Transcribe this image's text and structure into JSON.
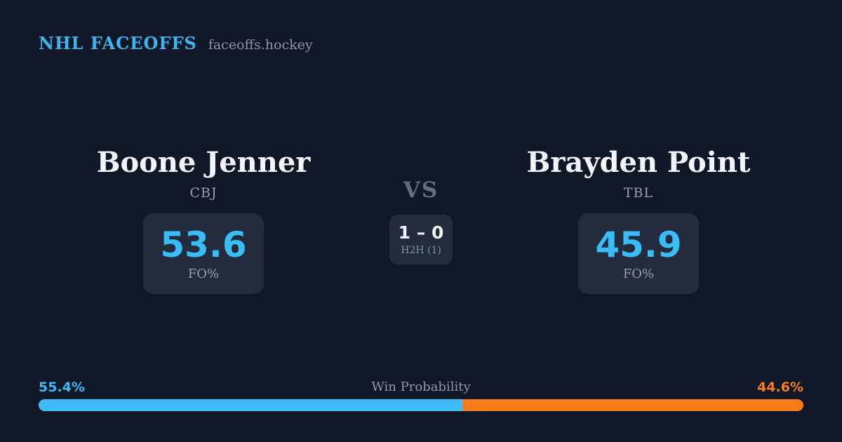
{
  "header": {
    "brand": "NHL FACEOFFS",
    "site": "faceoffs.hockey"
  },
  "players": {
    "left": {
      "name": "Boone Jenner",
      "team": "CBJ",
      "stat_value": "53.6",
      "stat_label": "FO%",
      "win_prob_label": "55.4%"
    },
    "right": {
      "name": "Brayden Point",
      "team": "TBL",
      "stat_value": "45.9",
      "stat_label": "FO%",
      "win_prob_label": "44.6%"
    }
  },
  "center": {
    "vs": "VS",
    "score": "1 – 0",
    "h2h": "H2H (1)"
  },
  "win_probability": {
    "title": "Win Probability",
    "left_pct": 55.4,
    "right_pct": 44.6,
    "left_color": "#3ebcf5",
    "right_color": "#f87d1a"
  },
  "colors": {
    "background": "#101827",
    "panel": "#222c3d",
    "accent_blue": "#38bdf8",
    "accent_orange": "#f87d1a",
    "text_primary": "#f2f6fc",
    "text_muted": "#94a0b2"
  },
  "chart_data": {
    "type": "bar",
    "orientation": "horizontal-stacked",
    "title": "Win Probability",
    "segments": [
      {
        "label": "Boone Jenner (CBJ) win probability",
        "value": 55.4,
        "color": "#3ebcf5"
      },
      {
        "label": "Brayden Point (TBL) win probability",
        "value": 44.6,
        "color": "#f87d1a"
      }
    ],
    "xlim": [
      0,
      100
    ],
    "related_stats": {
      "faceoff_pct": [
        {
          "player": "Boone Jenner",
          "team": "CBJ",
          "fo_pct": 53.6
        },
        {
          "player": "Brayden Point",
          "team": "TBL",
          "fo_pct": 45.9
        }
      ],
      "head_to_head": {
        "score": "1 – 0",
        "games": 1
      }
    }
  }
}
